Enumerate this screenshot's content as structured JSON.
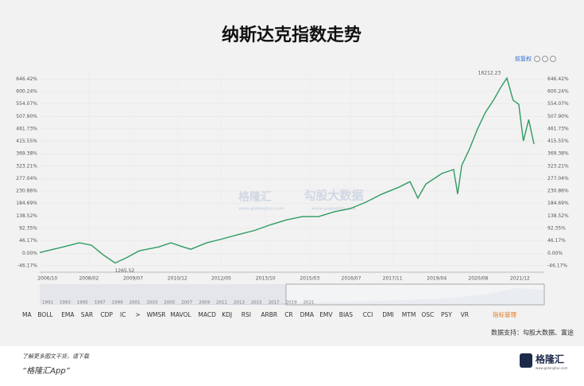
{
  "chart_data": {
    "type": "line",
    "title": "纳斯达克指数走势",
    "price_mode_button": "前复权",
    "max_label": "16212.23",
    "min_label": "1265.52",
    "series": [
      {
        "color": "#2f9a62",
        "x": [
          2006.5,
          2007.26,
          2007.77,
          2008.16,
          2008.54,
          2008.92,
          2009.31,
          2009.69,
          2010.33,
          2010.71,
          2011.1,
          2011.35,
          2011.86,
          2012.38,
          2012.89,
          2013.4,
          2013.91,
          2014.42,
          2014.93,
          2015.45,
          2015.96,
          2016.47,
          2016.98,
          2017.49,
          2018.0,
          2018.39,
          2018.64,
          2018.9,
          2019.41,
          2019.79,
          2019.92,
          2020.05,
          2020.3,
          2020.56,
          2020.81,
          2021.07,
          2021.32,
          2021.5,
          2021.7,
          2021.88,
          2022.03,
          2022.2,
          2022.37
        ],
        "values": [
          3,
          24,
          39,
          30,
          -6,
          -36,
          -15,
          9,
          24,
          39,
          24,
          15,
          39,
          54,
          70,
          85,
          106,
          124,
          136,
          136,
          154,
          166,
          190,
          220,
          244,
          266,
          205,
          257,
          296,
          311,
          220,
          326,
          387,
          462,
          523,
          568,
          619,
          650,
          568,
          553,
          417,
          496,
          405
        ]
      }
    ],
    "xlim": [
      2006.5,
      2022.7
    ],
    "xticks": [
      {
        "value": 2006.75,
        "label": "2006/10"
      },
      {
        "value": 2008.08,
        "label": "2008/02"
      },
      {
        "value": 2009.5,
        "label": "2009/07"
      },
      {
        "value": 2010.92,
        "label": "2010/12"
      },
      {
        "value": 2012.33,
        "label": "2012/05"
      },
      {
        "value": 2013.75,
        "label": "2013/10"
      },
      {
        "value": 2015.17,
        "label": "2015/03"
      },
      {
        "value": 2016.5,
        "label": "2016/07"
      },
      {
        "value": 2017.83,
        "label": "2017/11"
      },
      {
        "value": 2019.25,
        "label": "2019/04"
      },
      {
        "value": 2020.58,
        "label": "2020/08"
      },
      {
        "value": 2021.92,
        "label": "2021/12"
      }
    ],
    "ylim": [
      -70,
      680
    ],
    "yticks": [
      {
        "value": -46.17,
        "label": "-46.17%"
      },
      {
        "value": 0,
        "label": "0.00%"
      },
      {
        "value": 46.17,
        "label": "46.17%"
      },
      {
        "value": 92.35,
        "label": "92.35%"
      },
      {
        "value": 138.52,
        "label": "138.52%"
      },
      {
        "value": 184.69,
        "label": "184.69%"
      },
      {
        "value": 230.86,
        "label": "230.86%"
      },
      {
        "value": 277.04,
        "label": "277.04%"
      },
      {
        "value": 323.21,
        "label": "323.21%"
      },
      {
        "value": 369.38,
        "label": "369.38%"
      },
      {
        "value": 415.55,
        "label": "415.55%"
      },
      {
        "value": 461.73,
        "label": "461.73%"
      },
      {
        "value": 507.9,
        "label": "507.90%"
      },
      {
        "value": 554.07,
        "label": "554.07%"
      },
      {
        "value": 600.24,
        "label": "600.24%"
      },
      {
        "value": 646.42,
        "label": "646.42%"
      }
    ],
    "grid": true,
    "watermarks": [
      "格隆汇",
      "www.gelonghui.com",
      "勾股大数据",
      "www.gogudata.com"
    ],
    "navigator_years": [
      1991,
      1993,
      1995,
      1997,
      1999,
      2001,
      2003,
      2005,
      2007,
      2009,
      2011,
      2013,
      2015,
      2017,
      2019,
      2021
    ],
    "indicators": [
      "MA",
      "BOLL",
      "EMA",
      "SAR",
      "CDP",
      "IC",
      ">",
      "WMSR",
      "MAVOL",
      "MACD",
      "KDJ",
      "RSI",
      "ARBR",
      "CR",
      "DMA",
      "EMV",
      "BIAS",
      "CCI",
      "DMI",
      "MTM",
      "OSC",
      "PSY",
      "VR"
    ],
    "indicator_manage": "指标管理",
    "source": "数据支持：勾股大数据、富途"
  },
  "footer": {
    "note": "了解更多图文干货，请下载",
    "app": "“格隆汇App”",
    "logo": "格隆汇",
    "logo_url": "www.gelonghui.com"
  }
}
